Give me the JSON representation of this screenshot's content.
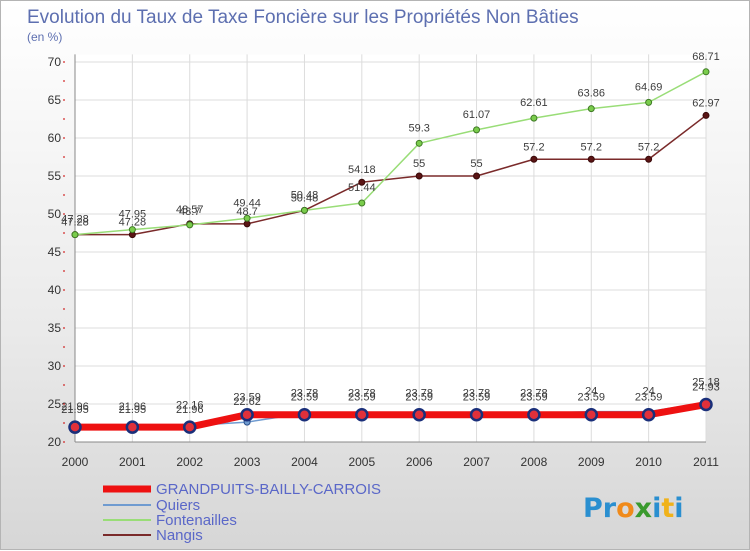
{
  "chart_data": {
    "type": "line",
    "title": "Evolution du Taux de Taxe Foncière sur les Propriétés Non Bâties",
    "ylabel": "(en %)",
    "xlabel": "",
    "ylim": [
      20,
      71
    ],
    "yticks": [
      20,
      25,
      30,
      35,
      40,
      45,
      50,
      55,
      60,
      65,
      70
    ],
    "categories": [
      "2000",
      "2001",
      "2002",
      "2003",
      "2004",
      "2005",
      "2006",
      "2007",
      "2008",
      "2009",
      "2010",
      "2011"
    ],
    "series": [
      {
        "name": "GRANDPUITS-BAILLY-CARROIS",
        "color": "#ee1111",
        "values": [
          21.95,
          21.95,
          21.96,
          23.59,
          23.59,
          23.59,
          23.59,
          23.59,
          23.59,
          23.59,
          23.59,
          24.93
        ],
        "labels": [
          "21.95",
          "21.95",
          "21.96",
          "23.59",
          "23.59",
          "23.59",
          "23.59",
          "23.59",
          "23.59",
          "23.59",
          "23.59",
          "24.93"
        ]
      },
      {
        "name": "Quiers",
        "color": "#6f9bd0",
        "values": [
          21.96,
          21.96,
          22.16,
          22.62,
          23.78,
          23.78,
          23.78,
          23.78,
          23.78,
          24,
          24,
          25.18
        ],
        "labels": [
          "21.96",
          "21.96",
          "22.16",
          "22.62",
          "23.78",
          "23.78",
          "23.78",
          "23.78",
          "23.78",
          "24",
          "24",
          "25.18"
        ]
      },
      {
        "name": "Fontenailles",
        "color": "#99dd77",
        "values": [
          47.28,
          47.95,
          48.57,
          49.44,
          50.48,
          51.44,
          59.3,
          61.07,
          62.61,
          63.86,
          64.69,
          68.71
        ],
        "labels": [
          "47.28",
          "47.95",
          "48.57",
          "49.44",
          "50.48",
          "51.44",
          "59.3",
          "61.07",
          "62.61",
          "63.86",
          "64.69",
          "68.71"
        ]
      },
      {
        "name": "Nangis",
        "color": "#7a2a2a",
        "values": [
          47.28,
          47.28,
          48.7,
          48.7,
          50.48,
          54.18,
          55,
          55,
          57.2,
          57.2,
          57.2,
          62.97
        ],
        "labels": [
          "47.28",
          "47.28",
          "48.7",
          "48.7",
          "50.48",
          "54.18",
          "55",
          "55",
          "57.2",
          "57.2",
          "57.2",
          "62.97"
        ]
      }
    ],
    "legend_position": "bottom-left"
  },
  "logo": {
    "text_parts": [
      "Pr",
      "o",
      "x",
      "i",
      "t",
      "i"
    ]
  }
}
